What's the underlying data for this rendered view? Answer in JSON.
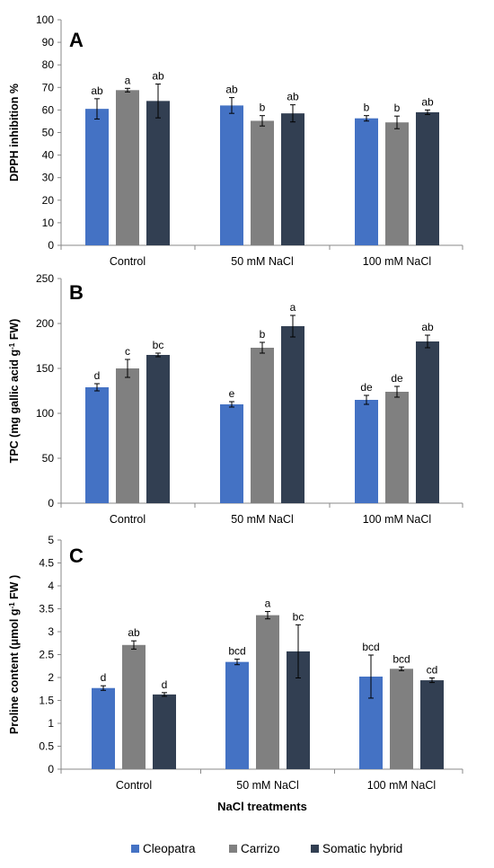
{
  "legend": [
    {
      "name": "Cleopatra",
      "color": "#4472C4"
    },
    {
      "name": "Carrizo",
      "color": "#808080"
    },
    {
      "name": "Somatic hybrid",
      "color": "#323F52"
    }
  ],
  "chart_data": [
    {
      "type": "bar",
      "panel": "A",
      "ylabel": "DPPH inhibition %",
      "xlabel": "",
      "categories": [
        "Control",
        "50 mM NaCl",
        "100 mM NaCl"
      ],
      "ylim": [
        0,
        100
      ],
      "yticks": [
        0,
        10,
        20,
        30,
        40,
        50,
        60,
        70,
        80,
        90,
        100
      ],
      "series": [
        {
          "name": "Cleopatra",
          "values": [
            60.5,
            62,
            56.3
          ],
          "errors": [
            4.5,
            3.5,
            1.2
          ],
          "letters": [
            "ab",
            "ab",
            "b"
          ]
        },
        {
          "name": "Carrizo",
          "values": [
            68.8,
            55.2,
            54.5
          ],
          "errors": [
            0.8,
            2.3,
            2.8
          ],
          "letters": [
            "a",
            "b",
            "b"
          ]
        },
        {
          "name": "Somatic hybrid",
          "values": [
            64,
            58.5,
            59
          ],
          "errors": [
            7.5,
            3.8,
            1
          ],
          "letters": [
            "ab",
            "ab",
            "ab"
          ]
        }
      ]
    },
    {
      "type": "bar",
      "panel": "B",
      "ylabel_main": "TPC (mg gallic acid g",
      "ylabel_sup": "-1",
      "ylabel_end": " FW)",
      "xlabel": "",
      "categories": [
        "Control",
        "50 mM NaCl",
        "100 mM NaCl"
      ],
      "ylim": [
        0,
        250
      ],
      "yticks": [
        0,
        50,
        100,
        150,
        200,
        250
      ],
      "series": [
        {
          "name": "Cleopatra",
          "values": [
            129,
            110,
            115
          ],
          "errors": [
            4,
            3,
            5
          ],
          "letters": [
            "d",
            "e",
            "de"
          ]
        },
        {
          "name": "Carrizo",
          "values": [
            150,
            173,
            124
          ],
          "errors": [
            10,
            6,
            6
          ],
          "letters": [
            "c",
            "b",
            "de"
          ]
        },
        {
          "name": "Somatic hybrid",
          "values": [
            165,
            197,
            180
          ],
          "errors": [
            2,
            12,
            7
          ],
          "letters": [
            "bc",
            "a",
            "ab"
          ]
        }
      ]
    },
    {
      "type": "bar",
      "panel": "C",
      "ylabel_main": "Proline content  (μmol g",
      "ylabel_sup": "-1",
      "ylabel_end": " FW )",
      "xlabel": "NaCl treatments",
      "categories": [
        "Control",
        "50 mM NaCl",
        "100 mM NaCl"
      ],
      "ylim": [
        0,
        5
      ],
      "yticks": [
        "0",
        "0.5",
        "1",
        "1.5",
        "2",
        "2.5",
        "3",
        "3.5",
        "4",
        "4.5",
        "5"
      ],
      "series": [
        {
          "name": "Cleopatra",
          "values": [
            1.77,
            2.34,
            2.02
          ],
          "errors": [
            0.05,
            0.06,
            0.47
          ],
          "letters": [
            "d",
            "bcd",
            "bcd"
          ]
        },
        {
          "name": "Carrizo",
          "values": [
            2.71,
            3.36,
            2.19
          ],
          "errors": [
            0.09,
            0.08,
            0.04
          ],
          "letters": [
            "ab",
            "a",
            "bcd"
          ]
        },
        {
          "name": "Somatic hybrid",
          "values": [
            1.63,
            2.57,
            1.94
          ],
          "errors": [
            0.04,
            0.58,
            0.05
          ],
          "letters": [
            "d",
            "bc",
            "cd"
          ]
        }
      ]
    }
  ]
}
